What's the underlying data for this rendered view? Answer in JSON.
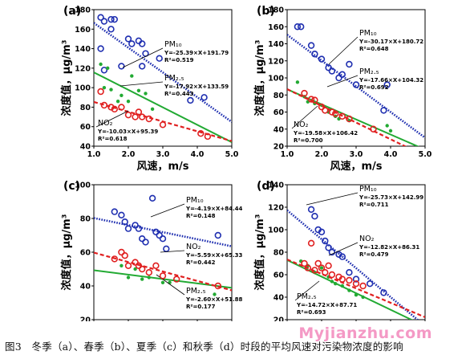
{
  "caption": "图3　冬季（a）、春季（b）、夏季（c）和秋季（d）时段的平均风速对污染物浓度的影响",
  "watermark": "Myjianzhu.com",
  "colors": {
    "pm10": "#1f2fb0",
    "pm25": "#22aa33",
    "no2": "#e02020"
  },
  "axis_text": {
    "xlabel": "风速，m/s",
    "ylabel": "浓度值，μg/m³"
  },
  "chart_data": [
    {
      "type": "scatter",
      "panel_label": "(a)",
      "xlabel": "风速，m/s",
      "ylabel": "浓度值，μg/m³",
      "xlim": [
        1.0,
        5.0
      ],
      "ylim": [
        40,
        180
      ],
      "xticks": [
        1.0,
        2.0,
        3.0,
        4.0,
        5.0
      ],
      "yticks": [
        40,
        60,
        80,
        100,
        120,
        140,
        160,
        180
      ],
      "series": [
        {
          "name": "PM₁₀",
          "key": "pm10",
          "marker": "circle",
          "line": "dotted",
          "equation": "Y=-25.39×X+191.79",
          "r2": "R²=0.519",
          "slope": -25.39,
          "intercept": 191.79,
          "x": [
            1.2,
            1.3,
            1.5,
            1.6,
            1.5,
            1.2,
            1.3,
            2.0,
            2.1,
            2.3,
            2.4,
            2.5,
            1.8,
            2.9,
            2.4,
            4.2,
            3.8
          ],
          "y": [
            172,
            168,
            160,
            170,
            170,
            140,
            118,
            150,
            145,
            148,
            145,
            135,
            122,
            130,
            122,
            90,
            87
          ]
        },
        {
          "name": "PM₂.₅",
          "key": "pm25",
          "marker": "dot",
          "line": "solid",
          "equation": "Y=-17.92×X+133.59",
          "r2": "R²=0.443",
          "slope": -17.92,
          "intercept": 133.59,
          "x": [
            1.2,
            1.4,
            1.3,
            1.5,
            1.8,
            2.1,
            2.0,
            2.3,
            2.5,
            1.7,
            2.7
          ],
          "y": [
            124,
            120,
            100,
            98,
            92,
            112,
            86,
            97,
            94,
            86,
            78
          ]
        },
        {
          "name": "NO₂",
          "key": "no2",
          "marker": "circle",
          "line": "dashed",
          "equation": "Y=-10.03×X+95.39",
          "r2": "R²=0.618",
          "slope": -10.03,
          "intercept": 95.39,
          "x": [
            1.2,
            1.3,
            1.5,
            1.6,
            1.8,
            2.0,
            2.2,
            2.3,
            2.4,
            2.6,
            3.0,
            4.1,
            4.3
          ],
          "y": [
            96,
            82,
            80,
            78,
            80,
            72,
            70,
            75,
            70,
            68,
            62,
            53,
            50
          ]
        }
      ]
    },
    {
      "type": "scatter",
      "panel_label": "(b)",
      "xlabel": "风速，m/s",
      "ylabel": "浓度值，μg/m³",
      "xlim": [
        1.0,
        5.0
      ],
      "ylim": [
        20,
        180
      ],
      "xticks": [
        1.0,
        2.0,
        3.0,
        4.0,
        5.0
      ],
      "yticks": [
        20,
        40,
        60,
        80,
        100,
        120,
        140,
        160,
        180
      ],
      "series": [
        {
          "name": "PM₁₀",
          "key": "pm10",
          "marker": "circle",
          "line": "dotted",
          "equation": "Y=-30.17×X+180.72",
          "r2": "R²=0.648",
          "slope": -30.17,
          "intercept": 180.72,
          "x": [
            1.3,
            1.4,
            1.7,
            1.8,
            2.0,
            2.2,
            2.3,
            2.5,
            2.6,
            2.8,
            3.0,
            3.8,
            3.9
          ],
          "y": [
            160,
            160,
            138,
            128,
            122,
            112,
            108,
            100,
            104,
            116,
            92,
            62,
            92
          ]
        },
        {
          "name": "PM₂.₅",
          "key": "pm25",
          "marker": "dot",
          "line": "solid",
          "equation": "Y=-17.66×X+104.32",
          "r2": "R²=0.692",
          "slope": -17.66,
          "intercept": 104.32,
          "x": [
            1.3,
            1.5,
            1.6,
            1.8,
            2.0,
            2.2,
            2.4,
            2.5,
            2.8,
            3.9,
            4.0
          ],
          "y": [
            95,
            78,
            72,
            70,
            68,
            60,
            55,
            52,
            50,
            44,
            38
          ]
        },
        {
          "name": "NO₂",
          "key": "no2",
          "marker": "circle",
          "line": "dashed",
          "equation": "Y=-19.58×X+106.42",
          "r2": "R²=0.700",
          "slope": -19.58,
          "intercept": 106.42,
          "x": [
            1.5,
            1.7,
            1.8,
            2.0,
            2.1,
            2.3,
            2.4,
            2.6,
            2.8,
            3.5
          ],
          "y": [
            82,
            75,
            74,
            66,
            62,
            60,
            58,
            55,
            52,
            40
          ]
        }
      ]
    },
    {
      "type": "scatter",
      "panel_label": "(c)",
      "xlabel": "风速，m/s",
      "ylabel": "浓度值，μg/m³",
      "xlim": [
        1.0,
        5.0
      ],
      "ylim": [
        20,
        100
      ],
      "xticks": [
        1.0,
        2.0,
        3.0,
        4.0,
        5.0
      ],
      "yticks": [
        20,
        40,
        60,
        80,
        100
      ],
      "series": [
        {
          "name": "PM₁₀",
          "key": "pm10",
          "marker": "circle",
          "line": "dotted",
          "equation": "Y=-4.19×X+84.44",
          "r2": "R²=0.148",
          "slope": -4.19,
          "intercept": 84.44,
          "x": [
            1.6,
            1.8,
            1.9,
            2.0,
            2.2,
            2.3,
            2.4,
            2.5,
            2.7,
            2.8,
            2.9,
            3.0,
            3.1,
            4.6
          ],
          "y": [
            84,
            82,
            78,
            74,
            76,
            74,
            68,
            66,
            92,
            72,
            70,
            68,
            62,
            70
          ]
        },
        {
          "name": "PM₂.₅",
          "key": "pm25",
          "marker": "dot",
          "line": "solid",
          "equation": "Y=-2.60×X+51.88",
          "r2": "R²=0.177",
          "slope": -2.6,
          "intercept": 51.88,
          "x": [
            1.8,
            2.0,
            2.2,
            2.4,
            2.6,
            3.0,
            3.2,
            4.5
          ],
          "y": [
            52,
            45,
            50,
            44,
            45,
            42,
            42,
            35
          ]
        },
        {
          "name": "NO₂",
          "key": "no2",
          "marker": "circle",
          "line": "dashed",
          "equation": "Y=-5.59×X+65.33",
          "r2": "R²=0.442",
          "slope": -5.59,
          "intercept": 65.33,
          "x": [
            1.6,
            1.8,
            1.9,
            2.0,
            2.2,
            2.3,
            2.4,
            2.6,
            2.8,
            3.0,
            3.4,
            4.6
          ],
          "y": [
            56,
            60,
            58,
            52,
            54,
            52,
            50,
            48,
            52,
            46,
            44,
            40
          ]
        }
      ]
    },
    {
      "type": "scatter",
      "panel_label": "(d)",
      "xlabel": "风速，m/s",
      "ylabel": "浓度值，μg/m³",
      "xlim": [
        1.0,
        5.0
      ],
      "ylim": [
        20,
        140
      ],
      "xticks": [
        1.0,
        2.0,
        3.0,
        4.0,
        5.0
      ],
      "yticks": [
        20,
        40,
        60,
        80,
        100,
        120,
        140
      ],
      "series": [
        {
          "name": "PM₁₀",
          "key": "pm10",
          "marker": "circle",
          "line": "dotted",
          "equation": "Y=-25.73×X+142.99",
          "r2": "R²=0.711",
          "slope": -25.73,
          "intercept": 142.99,
          "x": [
            1.7,
            1.8,
            1.9,
            2.0,
            2.1,
            2.2,
            2.3,
            2.5,
            2.6,
            2.8,
            3.0,
            3.4,
            3.8
          ],
          "y": [
            118,
            112,
            100,
            98,
            90,
            84,
            80,
            78,
            76,
            62,
            56,
            52,
            44
          ]
        },
        {
          "name": "PM₂.₅",
          "key": "pm25",
          "marker": "dot",
          "line": "solid",
          "equation": "Y=-14.72×X+87.71",
          "r2": "R²=0.693",
          "slope": -14.72,
          "intercept": 87.71,
          "x": [
            1.4,
            1.6,
            1.8,
            2.0,
            2.2,
            2.3,
            2.4,
            2.6,
            2.8,
            3.0,
            3.2
          ],
          "y": [
            72,
            68,
            62,
            66,
            58,
            54,
            52,
            50,
            46,
            42,
            40
          ]
        },
        {
          "name": "NO₂",
          "key": "no2",
          "marker": "circle",
          "line": "dashed",
          "equation": "Y=-12.82×X+86.31",
          "r2": "R²=0.479",
          "slope": -12.82,
          "intercept": 86.31,
          "x": [
            1.5,
            1.6,
            1.7,
            1.8,
            1.9,
            2.0,
            2.1,
            2.2,
            2.3,
            2.5,
            2.6,
            2.8,
            3.0,
            3.2
          ],
          "y": [
            70,
            66,
            88,
            64,
            70,
            66,
            62,
            68,
            60,
            58,
            56,
            55,
            52,
            50
          ]
        }
      ]
    }
  ]
}
